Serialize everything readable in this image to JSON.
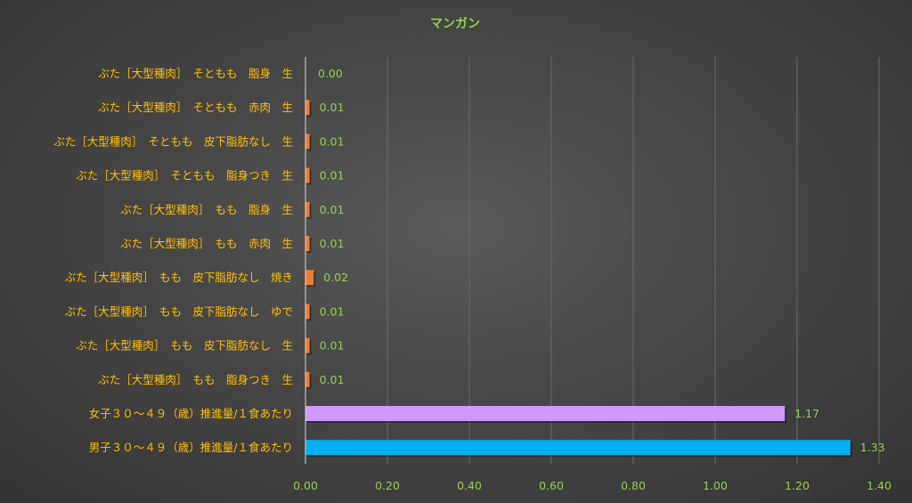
{
  "chart_data": {
    "type": "bar",
    "orientation": "horizontal",
    "title": "マンガン",
    "xlabel": "",
    "ylabel": "",
    "xlim": [
      0,
      1.4
    ],
    "x_ticks": [
      0,
      0.2,
      0.4,
      0.6,
      0.8,
      1.0,
      1.2,
      1.4
    ],
    "x_tick_labels": [
      "0.00",
      "0.20",
      "0.40",
      "0.60",
      "0.80",
      "1.00",
      "1.20",
      "1.40"
    ],
    "grid": "vertical",
    "legend": "none",
    "categories": [
      "ぶた［大型種肉］　そともも　脂身　生",
      "ぶた［大型種肉］　そともも　赤肉　生",
      "ぶた［大型種肉］　そともも　皮下脂肪なし　生",
      "ぶた［大型種肉］　そともも　脂身つき　生",
      "ぶた［大型種肉］　もも　脂身　生",
      "ぶた［大型種肉］　もも　赤肉　生",
      "ぶた［大型種肉］　もも　皮下脂肪なし　焼き",
      "ぶた［大型種肉］　もも　皮下脂肪なし　ゆで",
      "ぶた［大型種肉］　もも　皮下脂肪なし　生",
      "ぶた［大型種肉］　もも　脂身つき　生",
      "女子３０～４９（歳）推進量/１食あたり",
      "男子３０～４９（歳）推進量/１食あたり"
    ],
    "values": [
      0.0,
      0.01,
      0.01,
      0.01,
      0.01,
      0.01,
      0.02,
      0.01,
      0.01,
      0.01,
      1.17,
      1.33
    ],
    "value_labels": [
      "0.00",
      "0.01",
      "0.01",
      "0.01",
      "0.01",
      "0.01",
      "0.02",
      "0.01",
      "0.01",
      "0.01",
      "1.17",
      "1.33"
    ],
    "bar_colors": [
      "#ED7D31",
      "#ED7D31",
      "#ED7D31",
      "#ED7D31",
      "#ED7D31",
      "#ED7D31",
      "#ED7D31",
      "#ED7D31",
      "#ED7D31",
      "#ED7D31",
      "#CC99FF",
      "#00B0F0"
    ],
    "colors": {
      "title": "#92D050",
      "category_labels": "#FFC000",
      "value_labels": "#92D050",
      "tick_labels": "#92D050",
      "gridlines": "#6A6A6A",
      "axis": "#D9D9D9"
    }
  }
}
